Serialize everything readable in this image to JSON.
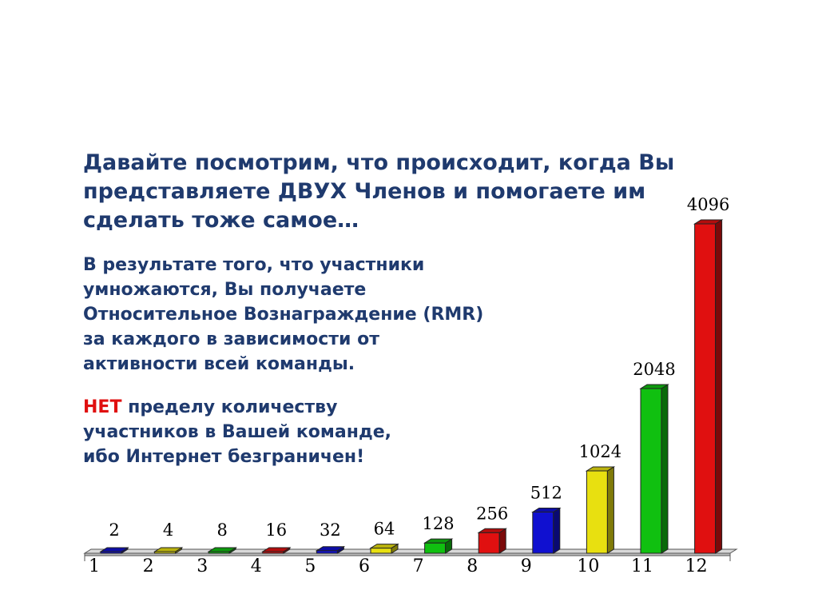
{
  "title": "Давайте посмотрим, что происходит, когда Вы представляете ДВУХ Членов и помогаете им сделать тоже самое…",
  "paragraph1": "В результате того, что участники умножаются, Вы получаете Относительное Вознаграждение (RMR) за каждого в зависимости от активности всей команды.",
  "paragraph2": {
    "emphasis": "НЕТ",
    "rest": " пределу количеству участников в Вашей команде, ибо Интернет безграничен!"
  },
  "chart_data": {
    "type": "bar",
    "categories": [
      "1",
      "2",
      "3",
      "4",
      "5",
      "6",
      "7",
      "8",
      "9",
      "10",
      "11",
      "12"
    ],
    "values": [
      2,
      4,
      8,
      16,
      32,
      64,
      128,
      256,
      512,
      1024,
      2048,
      4096
    ],
    "data_labels": [
      "2",
      "4",
      "8",
      "16",
      "32",
      "64",
      "128",
      "256",
      "512",
      "1024",
      "2048",
      "4096"
    ],
    "colors": [
      "#1010d0",
      "#e8e010",
      "#10c010",
      "#e01010",
      "#1010d0",
      "#e8e010",
      "#10c010",
      "#e01010",
      "#1010d0",
      "#e8e010",
      "#10c010",
      "#e01010"
    ],
    "ylim": [
      0,
      4096
    ],
    "grid": false,
    "legend": "none"
  }
}
